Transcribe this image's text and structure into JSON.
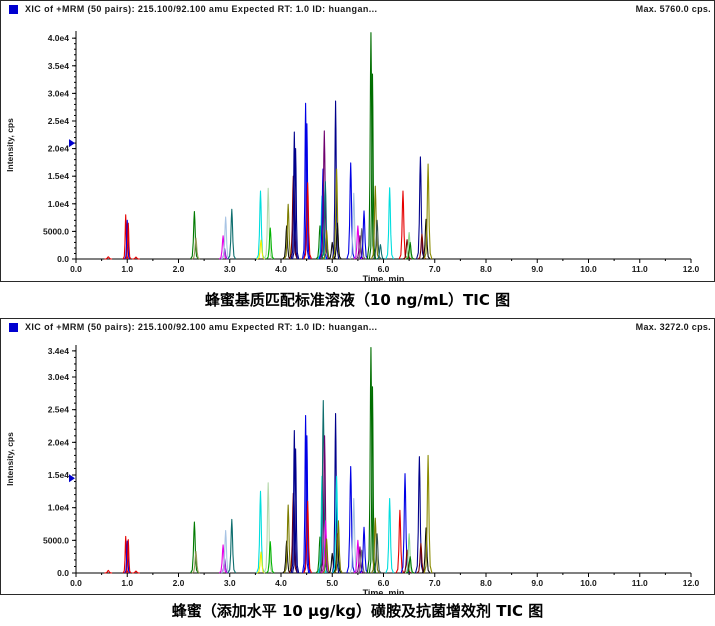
{
  "panels": [
    {
      "header": "XIC of +MRM (50 pairs): 215.100/92.100 amu Expected RT: 1.0 ID: huangan...",
      "max_label": "Max. 5760.0 cps.",
      "caption": "蜂蜜基质匹配标准溶液（10 ng/mL）TIC 图"
    },
    {
      "header": "XIC of +MRM (50 pairs): 215.100/92.100 amu Expected RT: 1.0 ID: huangan...",
      "max_label": "Max. 3272.0 cps.",
      "caption": "蜂蜜（添加水平 10 μg/kg）磺胺及抗菌增效剂 TIC 图"
    }
  ],
  "palette": {
    "red": "#e60000",
    "blue": "#0000e6",
    "navy": "#00008b",
    "green": "#007a00",
    "green2": "#006e00",
    "lime": "#00b400",
    "palegreen": "#b4d8aa",
    "palegreen2": "#8fd88f",
    "cyan": "#00dede",
    "teal": "#0e6e6e",
    "magenta": "#e600e6",
    "purple": "#6e006e",
    "violet": "#8833cc",
    "periwinkle": "#a8c4e4",
    "yellow": "#f0f000",
    "olive": "#7d7d00",
    "darkyellow": "#8b8b00",
    "maroon": "#7a0000",
    "black": "#101010",
    "gray": "#6e6e6e",
    "khaki": "#99995c",
    "slate": "#2f4f4f",
    "marker": "#0000cc",
    "axis": "#000000"
  },
  "chart_data": [
    {
      "type": "line",
      "title": "XIC of +MRM (50 pairs): 215.100/92.100 amu Expected RT: 1.0 ID: huangan...",
      "max_label": "Max. 5760.0 cps.",
      "xlabel": "Time, min",
      "ylabel": "Intensity, cps",
      "xlim": [
        0.0,
        12.0
      ],
      "ylim": [
        0,
        41300
      ],
      "grid": false,
      "xtick_values": [
        0,
        1,
        2,
        3,
        4,
        5,
        6,
        7,
        8,
        9,
        10,
        11,
        12
      ],
      "xtick_labels": [
        "0.0",
        "1.0",
        "2.0",
        "3.0",
        "4.0",
        "5.0",
        "6.0",
        "7.0",
        "8.0",
        "9.0",
        "10.0",
        "11.0",
        "12.0"
      ],
      "ytick_values": [
        0,
        5000,
        10000,
        15000,
        20000,
        25000,
        30000,
        35000,
        40000
      ],
      "ytick_labels": [
        "0.0",
        "5000.0",
        "1.0e4",
        "1.5e4",
        "2.0e4",
        "2.5e4",
        "3.0e4",
        "3.5e4",
        "4.0e4"
      ],
      "marker_value": 21000,
      "peaks_format": [
        "time_min",
        "intensity_cps",
        "color",
        "half_width_min"
      ],
      "peaks": [
        [
          0.63,
          400,
          "red"
        ],
        [
          0.97,
          8000,
          "red",
          0.05
        ],
        [
          1.0,
          7000,
          "blue",
          0.05
        ],
        [
          1.02,
          6500,
          "red",
          0.05
        ],
        [
          1.17,
          350,
          "red"
        ],
        [
          2.31,
          8600,
          "green"
        ],
        [
          2.34,
          3800,
          "khaki"
        ],
        [
          2.87,
          4200,
          "magenta"
        ],
        [
          2.9,
          1900,
          "violet"
        ],
        [
          2.92,
          7600,
          "periwinkle"
        ],
        [
          3.04,
          9000,
          "teal"
        ],
        [
          3.6,
          12300,
          "cyan"
        ],
        [
          3.61,
          3400,
          "yellow"
        ],
        [
          3.75,
          12800,
          "palegreen"
        ],
        [
          3.79,
          5600,
          "lime"
        ],
        [
          4.11,
          6000,
          "black"
        ],
        [
          4.14,
          9900,
          "olive"
        ],
        [
          4.24,
          15000,
          "maroon"
        ],
        [
          4.26,
          23000,
          "navy",
          0.06
        ],
        [
          4.285,
          20000,
          "navy",
          0.06
        ],
        [
          4.48,
          28200,
          "blue",
          0.06
        ],
        [
          4.505,
          24500,
          "blue",
          0.06
        ],
        [
          4.52,
          13800,
          "red"
        ],
        [
          4.76,
          6000,
          "green"
        ],
        [
          4.8,
          11400,
          "cyan"
        ],
        [
          4.82,
          16300,
          "blue"
        ],
        [
          4.845,
          23200,
          "purple"
        ],
        [
          4.865,
          14000,
          "teal"
        ],
        [
          4.89,
          5200,
          "olive"
        ],
        [
          5.0,
          3000,
          "black"
        ],
        [
          5.065,
          28600,
          "navy",
          0.06
        ],
        [
          5.085,
          16300,
          "darkyellow"
        ],
        [
          5.1,
          6500,
          "black"
        ],
        [
          5.36,
          17400,
          "blue"
        ],
        [
          5.42,
          11900,
          "periwinkle"
        ],
        [
          5.5,
          6000,
          "magenta"
        ],
        [
          5.54,
          4200,
          "purple"
        ],
        [
          5.575,
          5500,
          "gray"
        ],
        [
          5.62,
          8700,
          "blue"
        ],
        [
          5.755,
          41000,
          "green2",
          0.07
        ],
        [
          5.785,
          33500,
          "green2",
          0.06
        ],
        [
          5.84,
          13200,
          "olive"
        ],
        [
          5.875,
          7000,
          "slate"
        ],
        [
          5.94,
          2600,
          "teal"
        ],
        [
          6.12,
          12900,
          "cyan"
        ],
        [
          6.38,
          12300,
          "red"
        ],
        [
          6.46,
          3500,
          "maroon"
        ],
        [
          6.5,
          4800,
          "palegreen2"
        ],
        [
          6.52,
          3000,
          "green"
        ],
        [
          6.72,
          18500,
          "navy"
        ],
        [
          6.75,
          4500,
          "maroon"
        ],
        [
          6.83,
          7200,
          "black"
        ],
        [
          6.87,
          17200,
          "darkyellow"
        ]
      ]
    },
    {
      "type": "line",
      "title": "XIC of +MRM (50 pairs): 215.100/92.100 amu Expected RT: 1.0 ID: huangan...",
      "max_label": "Max. 3272.0 cps.",
      "xlabel": "Time, min",
      "ylabel": "Intensity, cps",
      "xlim": [
        0.0,
        12.0
      ],
      "ylim": [
        0,
        34900
      ],
      "grid": false,
      "xtick_values": [
        0,
        1,
        2,
        3,
        4,
        5,
        6,
        7,
        8,
        9,
        10,
        11,
        12
      ],
      "xtick_labels": [
        "0.0",
        "1.0",
        "2.0",
        "3.0",
        "4.0",
        "5.0",
        "6.0",
        "7.0",
        "8.0",
        "9.0",
        "10.0",
        "11.0",
        "12.0"
      ],
      "ytick_values": [
        0,
        5000,
        10000,
        15000,
        20000,
        25000,
        30000,
        34000
      ],
      "ytick_labels": [
        "0.0",
        "5000.0",
        "1.0e4",
        "1.5e4",
        "2.0e4",
        "2.5e4",
        "3.0e4",
        "3.4e4"
      ],
      "marker_value": 14500,
      "peaks_format": [
        "time_min",
        "intensity_cps",
        "color",
        "half_width_min"
      ],
      "peaks": [
        [
          0.63,
          400,
          "red"
        ],
        [
          0.97,
          5600,
          "red",
          0.05
        ],
        [
          1.0,
          4900,
          "blue",
          0.05
        ],
        [
          1.02,
          5100,
          "red",
          0.05
        ],
        [
          1.17,
          300,
          "red"
        ],
        [
          2.31,
          7800,
          "green"
        ],
        [
          2.34,
          3300,
          "khaki"
        ],
        [
          2.87,
          4300,
          "magenta"
        ],
        [
          2.9,
          2200,
          "violet"
        ],
        [
          2.92,
          6500,
          "periwinkle"
        ],
        [
          3.04,
          8200,
          "teal"
        ],
        [
          3.6,
          12500,
          "cyan"
        ],
        [
          3.61,
          3200,
          "yellow"
        ],
        [
          3.75,
          13800,
          "palegreen"
        ],
        [
          3.79,
          4800,
          "lime"
        ],
        [
          4.11,
          4900,
          "black"
        ],
        [
          4.14,
          10400,
          "olive"
        ],
        [
          4.24,
          12200,
          "maroon"
        ],
        [
          4.26,
          21800,
          "navy",
          0.06
        ],
        [
          4.285,
          19000,
          "navy",
          0.06
        ],
        [
          4.48,
          24100,
          "blue",
          0.06
        ],
        [
          4.505,
          21000,
          "blue",
          0.06
        ],
        [
          4.52,
          11000,
          "red"
        ],
        [
          4.76,
          5500,
          "green"
        ],
        [
          4.8,
          14800,
          "cyan"
        ],
        [
          4.825,
          26400,
          "teal"
        ],
        [
          4.85,
          21000,
          "purple"
        ],
        [
          4.87,
          8000,
          "magenta"
        ],
        [
          4.89,
          5200,
          "olive"
        ],
        [
          5.0,
          3000,
          "black"
        ],
        [
          5.065,
          24400,
          "navy",
          0.06
        ],
        [
          5.085,
          14800,
          "cyan"
        ],
        [
          5.1,
          6000,
          "black"
        ],
        [
          5.12,
          8000,
          "olive"
        ],
        [
          5.36,
          16300,
          "blue"
        ],
        [
          5.42,
          11400,
          "periwinkle"
        ],
        [
          5.5,
          5000,
          "magenta"
        ],
        [
          5.54,
          4000,
          "purple"
        ],
        [
          5.575,
          3500,
          "gray"
        ],
        [
          5.62,
          7000,
          "blue"
        ],
        [
          5.755,
          34500,
          "green2",
          0.07
        ],
        [
          5.785,
          28500,
          "green2",
          0.06
        ],
        [
          5.84,
          8400,
          "olive"
        ],
        [
          5.875,
          6000,
          "slate"
        ],
        [
          6.12,
          11400,
          "cyan"
        ],
        [
          6.32,
          9600,
          "red"
        ],
        [
          6.42,
          15200,
          "blue"
        ],
        [
          6.46,
          3500,
          "maroon"
        ],
        [
          6.5,
          6000,
          "palegreen2"
        ],
        [
          6.52,
          2500,
          "green"
        ],
        [
          6.7,
          17800,
          "navy"
        ],
        [
          6.73,
          4500,
          "maroon"
        ],
        [
          6.83,
          6900,
          "black"
        ],
        [
          6.87,
          18000,
          "darkyellow"
        ]
      ]
    }
  ]
}
